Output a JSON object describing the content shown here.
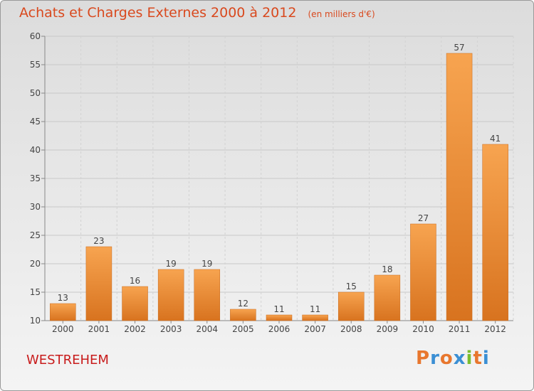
{
  "chart_data": {
    "type": "bar",
    "title": "Achats et Charges Externes 2000 à 2012",
    "unit": "(en milliers d'€)",
    "categories": [
      "2000",
      "2001",
      "2002",
      "2003",
      "2004",
      "2005",
      "2006",
      "2007",
      "2008",
      "2009",
      "2010",
      "2011",
      "2012"
    ],
    "values": [
      13,
      23,
      16,
      19,
      19,
      12,
      11,
      11,
      15,
      18,
      27,
      57,
      41
    ],
    "ylim": [
      10,
      60
    ],
    "yticks": [
      10,
      15,
      20,
      25,
      30,
      35,
      40,
      45,
      50,
      55,
      60
    ],
    "grid": true,
    "bar_color": "#e8862e"
  },
  "footer": {
    "place": "WESTREHEM",
    "brand": "Proxiti"
  },
  "brand_colors": [
    "#e8772e",
    "#3b8fd4",
    "#e8772e",
    "#3b8fd4",
    "#7bbd2f",
    "#e8772e",
    "#3b8fd4"
  ]
}
